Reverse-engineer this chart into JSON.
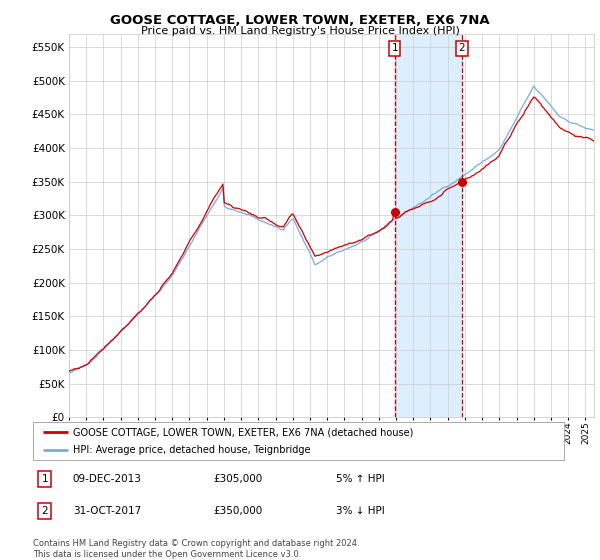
{
  "title": "GOOSE COTTAGE, LOWER TOWN, EXETER, EX6 7NA",
  "subtitle": "Price paid vs. HM Land Registry's House Price Index (HPI)",
  "legend_line1": "GOOSE COTTAGE, LOWER TOWN, EXETER, EX6 7NA (detached house)",
  "legend_line2": "HPI: Average price, detached house, Teignbridge",
  "annotation1_label": "1",
  "annotation1_date": "09-DEC-2013",
  "annotation1_price": "£305,000",
  "annotation1_hpi": "5% ↑ HPI",
  "annotation2_label": "2",
  "annotation2_date": "31-OCT-2017",
  "annotation2_price": "£350,000",
  "annotation2_hpi": "3% ↓ HPI",
  "footer": "Contains HM Land Registry data © Crown copyright and database right 2024.\nThis data is licensed under the Open Government Licence v3.0.",
  "red_line_color": "#cc0000",
  "blue_line_color": "#7aabdc",
  "highlight_color": "#ddeeff",
  "vline_color": "#cc0000",
  "dot_color": "#cc0000",
  "grid_color": "#cccccc",
  "background_color": "#ffffff",
  "annotation_box_color": "#cc0000",
  "sale1_year": 2013.92,
  "sale2_year": 2017.83,
  "sale1_value": 305000,
  "sale2_value": 350000,
  "ylim_max": 570000,
  "xlim_min": 1995.0,
  "xlim_max": 2025.5
}
